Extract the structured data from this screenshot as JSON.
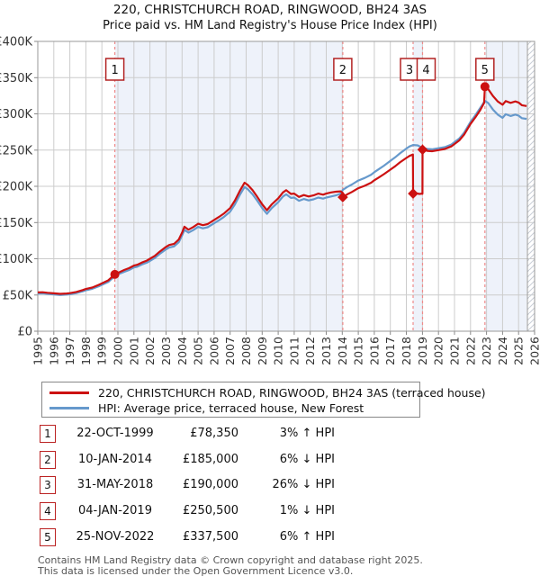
{
  "title": "220, CHRISTCHURCH ROAD, RINGWOOD, BH24 3AS",
  "subtitle": "Price paid vs. HM Land Registry's House Price Index (HPI)",
  "legend": [
    {
      "label": "220, CHRISTCHURCH ROAD, RINGWOOD, BH24 3AS (terraced house)",
      "color": "#cc1111"
    },
    {
      "label": "HPI: Average price, terraced house, New Forest",
      "color": "#6699cc"
    }
  ],
  "sales": [
    {
      "num": "1",
      "date": "22-OCT-1999",
      "price": "£78,350",
      "hpi_diff": "3% ↑ HPI",
      "year": 1999.81,
      "value_k": 78.35,
      "marker": "circle",
      "box_dx": 0
    },
    {
      "num": "2",
      "date": "10-JAN-2014",
      "price": "£185,000",
      "hpi_diff": "6% ↓ HPI",
      "year": 2014.03,
      "value_k": 185,
      "marker": "diamond",
      "box_dx": 0
    },
    {
      "num": "3",
      "date": "31-MAY-2018",
      "price": "£190,000",
      "hpi_diff": "26% ↓ HPI",
      "year": 2018.42,
      "value_k": 190,
      "marker": "diamond",
      "box_dx": -4
    },
    {
      "num": "4",
      "date": "04-JAN-2019",
      "price": "£250,500",
      "hpi_diff": "1% ↓ HPI",
      "year": 2019.01,
      "value_k": 250.5,
      "marker": "diamond",
      "box_dx": 4
    },
    {
      "num": "5",
      "date": "25-NOV-2022",
      "price": "£337,500",
      "hpi_diff": "6% ↑ HPI",
      "year": 2022.9,
      "value_k": 337.5,
      "marker": "circle",
      "box_dx": 0
    }
  ],
  "footer": {
    "line1": "Contains HM Land Registry data © Crown copyright and database right 2025.",
    "line2": "This data is licensed under the Open Government Licence v3.0."
  },
  "colors": {
    "price_line": "#cc1111",
    "hpi_line": "#6699cc",
    "sale_dash": "#ef8a8a",
    "marker_box_border": "#b22222",
    "grid": "#cccccc",
    "plot_border": "#999999",
    "ownership_shade": "#eef2fa",
    "hatch_line": "#c9ced6",
    "axis_text": "#333333"
  },
  "chart_data": {
    "type": "line",
    "title": "Price paid vs. HM Land Registry's House Price Index (HPI)",
    "x_range": [
      1995,
      2026
    ],
    "y_range": [
      0,
      400
    ],
    "grid": true,
    "legend_position": "bottom",
    "y_tick_labels": [
      "£0",
      "£50K",
      "£100K",
      "£150K",
      "£200K",
      "£250K",
      "£300K",
      "£350K",
      "£400K"
    ],
    "x_ticks": [
      1995,
      1996,
      1997,
      1998,
      1999,
      2000,
      2001,
      2002,
      2003,
      2004,
      2005,
      2006,
      2007,
      2008,
      2009,
      2010,
      2011,
      2012,
      2013,
      2014,
      2015,
      2016,
      2017,
      2018,
      2019,
      2020,
      2021,
      2022,
      2023,
      2024,
      2025,
      2026
    ],
    "ownership_shading_years": [
      [
        1999.81,
        2014.03
      ],
      [
        2018.42,
        2019.01
      ],
      [
        2022.9,
        2025.5
      ]
    ],
    "future_hatch_years": [
      2025.55,
      2026
    ],
    "series": [
      {
        "name": "HPI: Average price, terraced house, New Forest",
        "color": "#6699cc",
        "points": [
          [
            1995.0,
            52
          ],
          [
            1995.3,
            52.3
          ],
          [
            1995.6,
            51.5
          ],
          [
            1996.0,
            50.8
          ],
          [
            1996.4,
            50
          ],
          [
            1996.8,
            50.5
          ],
          [
            1997.0,
            51
          ],
          [
            1997.4,
            52.5
          ],
          [
            1997.8,
            55
          ],
          [
            1998.0,
            56.5
          ],
          [
            1998.4,
            58.5
          ],
          [
            1998.8,
            62
          ],
          [
            1999.0,
            64
          ],
          [
            1999.4,
            68
          ],
          [
            1999.81,
            76.1
          ],
          [
            2000.0,
            78.5
          ],
          [
            2000.4,
            82
          ],
          [
            2000.7,
            84.5
          ],
          [
            2001.0,
            88
          ],
          [
            2001.2,
            89
          ],
          [
            2001.5,
            92
          ],
          [
            2001.8,
            94.5
          ],
          [
            2002.0,
            97
          ],
          [
            2002.3,
            101
          ],
          [
            2002.6,
            106.5
          ],
          [
            2003.0,
            113
          ],
          [
            2003.2,
            115.5
          ],
          [
            2003.5,
            117
          ],
          [
            2003.8,
            123
          ],
          [
            2004.0,
            132
          ],
          [
            2004.15,
            140
          ],
          [
            2004.4,
            136
          ],
          [
            2004.7,
            139.5
          ],
          [
            2005.0,
            144
          ],
          [
            2005.3,
            142
          ],
          [
            2005.6,
            143.5
          ],
          [
            2006.0,
            149
          ],
          [
            2006.3,
            153
          ],
          [
            2006.6,
            157.5
          ],
          [
            2007.0,
            165
          ],
          [
            2007.3,
            175
          ],
          [
            2007.6,
            188
          ],
          [
            2007.9,
            199
          ],
          [
            2008.1,
            196
          ],
          [
            2008.4,
            189
          ],
          [
            2008.7,
            180
          ],
          [
            2009.0,
            170
          ],
          [
            2009.3,
            162
          ],
          [
            2009.6,
            170
          ],
          [
            2010.0,
            178
          ],
          [
            2010.3,
            186
          ],
          [
            2010.5,
            189
          ],
          [
            2010.8,
            184
          ],
          [
            2011.0,
            184.5
          ],
          [
            2011.3,
            180
          ],
          [
            2011.6,
            182.5
          ],
          [
            2011.9,
            180.5
          ],
          [
            2012.2,
            182
          ],
          [
            2012.5,
            184.5
          ],
          [
            2012.8,
            183
          ],
          [
            2013.0,
            184.5
          ],
          [
            2013.3,
            186
          ],
          [
            2013.6,
            187.5
          ],
          [
            2013.9,
            190
          ],
          [
            2014.03,
            195
          ],
          [
            2014.3,
            199
          ],
          [
            2014.6,
            202.5
          ],
          [
            2015.0,
            208
          ],
          [
            2015.4,
            211.5
          ],
          [
            2015.8,
            216
          ],
          [
            2016.0,
            219.5
          ],
          [
            2016.3,
            224
          ],
          [
            2016.6,
            228.5
          ],
          [
            2017.0,
            235
          ],
          [
            2017.3,
            240
          ],
          [
            2017.6,
            245.5
          ],
          [
            2018.0,
            252
          ],
          [
            2018.2,
            255
          ],
          [
            2018.42,
            257
          ],
          [
            2018.7,
            256.5
          ],
          [
            2019.0,
            253
          ],
          [
            2019.3,
            251.5
          ],
          [
            2019.6,
            251
          ],
          [
            2020.0,
            252.5
          ],
          [
            2020.4,
            254
          ],
          [
            2020.8,
            257.5
          ],
          [
            2021.0,
            261
          ],
          [
            2021.3,
            266
          ],
          [
            2021.6,
            274
          ],
          [
            2022.0,
            289
          ],
          [
            2022.3,
            298
          ],
          [
            2022.6,
            308
          ],
          [
            2022.9,
            318
          ],
          [
            2023.1,
            315
          ],
          [
            2023.4,
            306
          ],
          [
            2023.7,
            299
          ],
          [
            2024.0,
            294.5
          ],
          [
            2024.2,
            299.5
          ],
          [
            2024.5,
            297
          ],
          [
            2024.8,
            299
          ],
          [
            2025.0,
            297.5
          ],
          [
            2025.2,
            294
          ],
          [
            2025.5,
            293
          ]
        ]
      },
      {
        "name": "220, CHRISTCHURCH ROAD, RINGWOOD, BH24 3AS (terraced house)",
        "color": "#cc1111",
        "points": [
          [
            1995.0,
            53.5
          ],
          [
            1995.3,
            53.8
          ],
          [
            1995.6,
            53
          ],
          [
            1996.0,
            52.3
          ],
          [
            1996.4,
            51.5
          ],
          [
            1996.8,
            52
          ],
          [
            1997.0,
            52.5
          ],
          [
            1997.4,
            54.2
          ],
          [
            1997.8,
            56.8
          ],
          [
            1998.0,
            58.3
          ],
          [
            1998.4,
            60.3
          ],
          [
            1998.8,
            64
          ],
          [
            1999.0,
            66
          ],
          [
            1999.4,
            70.2
          ],
          [
            1999.81,
            78.35
          ],
          [
            2000.0,
            80.4
          ],
          [
            2000.4,
            84.6
          ],
          [
            2000.7,
            87.1
          ],
          [
            2001.0,
            90.6
          ],
          [
            2001.2,
            91.7
          ],
          [
            2001.5,
            94.8
          ],
          [
            2001.8,
            97.4
          ],
          [
            2002.0,
            100
          ],
          [
            2002.3,
            104
          ],
          [
            2002.6,
            109.7
          ],
          [
            2003.0,
            116.4
          ],
          [
            2003.2,
            119
          ],
          [
            2003.5,
            120.5
          ],
          [
            2003.8,
            126.7
          ],
          [
            2004.0,
            136
          ],
          [
            2004.15,
            144.2
          ],
          [
            2004.4,
            140.1
          ],
          [
            2004.7,
            143.7
          ],
          [
            2005.0,
            148.3
          ],
          [
            2005.3,
            146.3
          ],
          [
            2005.6,
            147.8
          ],
          [
            2006.0,
            153.5
          ],
          [
            2006.3,
            157.6
          ],
          [
            2006.6,
            162.2
          ],
          [
            2007.0,
            170
          ],
          [
            2007.3,
            180.3
          ],
          [
            2007.6,
            193.6
          ],
          [
            2007.9,
            205
          ],
          [
            2008.1,
            201.9
          ],
          [
            2008.4,
            194.7
          ],
          [
            2008.7,
            185.4
          ],
          [
            2009.0,
            175.1
          ],
          [
            2009.3,
            166.9
          ],
          [
            2009.6,
            175.1
          ],
          [
            2010.0,
            183.3
          ],
          [
            2010.3,
            191.6
          ],
          [
            2010.5,
            194.7
          ],
          [
            2010.8,
            189.5
          ],
          [
            2011.0,
            190
          ],
          [
            2011.3,
            185.4
          ],
          [
            2011.6,
            188
          ],
          [
            2011.9,
            186
          ],
          [
            2012.2,
            187.5
          ],
          [
            2012.5,
            190
          ],
          [
            2012.8,
            188.5
          ],
          [
            2013.0,
            190
          ],
          [
            2013.3,
            191.5
          ],
          [
            2013.6,
            192.5
          ],
          [
            2013.9,
            193
          ],
          [
            2014.02,
            191
          ],
          [
            2014.03,
            185
          ],
          [
            2014.3,
            188.8
          ],
          [
            2014.6,
            192.2
          ],
          [
            2015.0,
            197.4
          ],
          [
            2015.4,
            200.7
          ],
          [
            2015.8,
            205
          ],
          [
            2016.0,
            208.3
          ],
          [
            2016.3,
            212.6
          ],
          [
            2016.6,
            216.8
          ],
          [
            2017.0,
            223
          ],
          [
            2017.3,
            227.7
          ],
          [
            2017.6,
            233
          ],
          [
            2018.0,
            239.1
          ],
          [
            2018.2,
            242
          ],
          [
            2018.41,
            243.8
          ],
          [
            2018.42,
            190
          ],
          [
            2018.6,
            190.5
          ],
          [
            2018.8,
            189.5
          ],
          [
            2019.0,
            190
          ],
          [
            2019.01,
            250.5
          ],
          [
            2019.3,
            249
          ],
          [
            2019.6,
            248.5
          ],
          [
            2020.0,
            250
          ],
          [
            2020.4,
            251.5
          ],
          [
            2020.8,
            255
          ],
          [
            2021.0,
            258.4
          ],
          [
            2021.3,
            263.3
          ],
          [
            2021.6,
            271.3
          ],
          [
            2022.0,
            286.1
          ],
          [
            2022.3,
            295
          ],
          [
            2022.6,
            305
          ],
          [
            2022.85,
            315
          ],
          [
            2022.9,
            337.5
          ],
          [
            2023.1,
            334.2
          ],
          [
            2023.4,
            324.7
          ],
          [
            2023.7,
            317.2
          ],
          [
            2024.0,
            312.5
          ],
          [
            2024.2,
            317.7
          ],
          [
            2024.5,
            315.1
          ],
          [
            2024.8,
            317.2
          ],
          [
            2025.0,
            315.6
          ],
          [
            2025.2,
            311.9
          ],
          [
            2025.5,
            310.8
          ]
        ]
      }
    ]
  }
}
